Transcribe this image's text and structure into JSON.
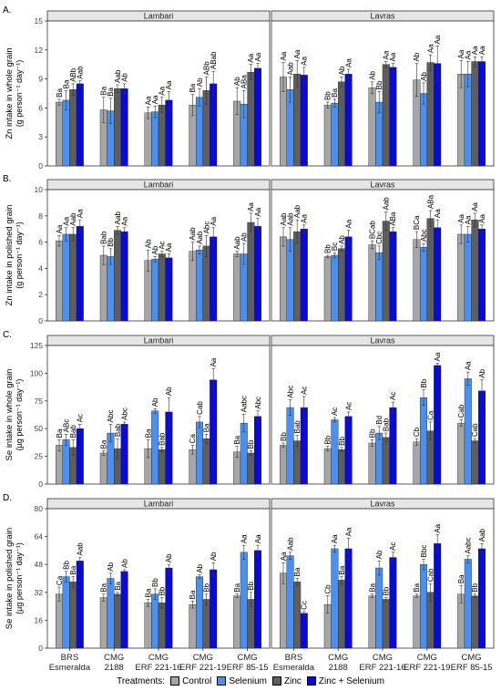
{
  "colors": {
    "Control": "#a6a6a6",
    "Selenium": "#4a90f0",
    "Zinc": "#5e5e5e",
    "Zinc + Selenium": "#0a0ad8"
  },
  "legend": {
    "title": "Treatments:",
    "entries": [
      "Control",
      "Selenium",
      "Zinc",
      "Zinc + Selenium"
    ]
  },
  "chart_data": [
    {
      "type": "bar",
      "panel_label": "A.",
      "ylabel": "Zn intake in whole grain",
      "yunit": "(g person⁻¹ day⁻¹)",
      "ylim": [
        0,
        15
      ],
      "yticks": [
        0,
        3,
        6,
        9,
        12,
        15
      ],
      "facets": [
        "Lambari",
        "Lavras"
      ],
      "categories": [
        "BRS Esmeralda",
        "CMG 2188",
        "CMG ERF 221-16",
        "CMG ERF 221-19",
        "CMG ERF 85-15"
      ],
      "series_names": [
        "Control",
        "Selenium",
        "Zinc",
        "Zinc + Selenium"
      ],
      "values": [
        [
          [
            6.6,
            6.8,
            7.9,
            8.5
          ],
          [
            5.8,
            5.7,
            8.0,
            8.0
          ],
          [
            5.5,
            5.6,
            6.3,
            6.8
          ],
          [
            6.3,
            7.1,
            7.8,
            8.5
          ],
          [
            6.7,
            6.4,
            9.7,
            10.1
          ]
        ],
        [
          [
            9.2,
            7.9,
            9.5,
            9.4
          ],
          [
            6.3,
            6.5,
            8.7,
            9.5
          ],
          [
            8.1,
            6.6,
            10.5,
            10.2
          ],
          [
            8.9,
            7.5,
            10.7,
            10.6
          ],
          [
            9.5,
            9.5,
            10.8,
            10.8
          ]
        ]
      ],
      "errors": [
        [
          [
            0.3,
            1.0,
            0.6,
            0.3
          ],
          [
            1.3,
            1.3,
            0.4,
            0.5
          ],
          [
            0.6,
            0.6,
            0.8,
            0.9
          ],
          [
            1.1,
            0.9,
            1.4,
            1.3
          ],
          [
            1.4,
            1.4,
            0.8,
            0.5
          ]
        ],
        [
          [
            1.5,
            1.3,
            1.4,
            0.8
          ],
          [
            0.3,
            0.4,
            0.5,
            0.5
          ],
          [
            0.6,
            1.1,
            0.3,
            0.4
          ],
          [
            1.7,
            1.1,
            0.8,
            1.8
          ],
          [
            1.4,
            1.3,
            0.5,
            0.5
          ]
        ]
      ],
      "letters": [
        [
          [
            "Ba",
            "Ba",
            "ABb",
            "Aab"
          ],
          [
            "Ba",
            "Ba",
            "Aab",
            "Ab"
          ],
          [
            "Aa",
            "Aa",
            "Aa",
            "Aa"
          ],
          [
            "Ba",
            "Ab",
            "ABb",
            "ABab"
          ],
          [
            "Ab",
            "ABa",
            "Aa",
            "Aa"
          ]
        ],
        [
          [
            "Aa",
            "Aab",
            "Aa",
            "Aa"
          ],
          [
            "Bb",
            "Ba",
            "Ab",
            "Aa"
          ],
          [
            "Ab",
            "Bb",
            "Aa",
            "Aa"
          ],
          [
            "Ab",
            "Ab",
            "Aa",
            "Aa"
          ],
          [
            "Aa",
            "Aa",
            "Aa",
            "Aa"
          ]
        ]
      ]
    },
    {
      "type": "bar",
      "panel_label": "B.",
      "ylabel": "Zn intake in polished grain",
      "yunit": "(g person⁻¹ day⁻¹)",
      "ylim": [
        0,
        10
      ],
      "yticks": [
        0,
        2,
        4,
        6,
        8,
        10
      ],
      "facets": [
        "Lambari",
        "Lavras"
      ],
      "categories": [
        "BRS Esmeralda",
        "CMG 2188",
        "CMG ERF 221-16",
        "CMG ERF 221-19",
        "CMG ERF 85-15"
      ],
      "series_names": [
        "Control",
        "Selenium",
        "Zinc",
        "Zinc + Selenium"
      ],
      "values": [
        [
          [
            6.1,
            6.6,
            6.6,
            7.2
          ],
          [
            5.0,
            4.9,
            6.9,
            6.8
          ],
          [
            4.6,
            4.7,
            5.1,
            4.8
          ],
          [
            5.3,
            5.4,
            5.7,
            6.4
          ],
          [
            5.1,
            5.1,
            7.5,
            7.2
          ]
        ],
        [
          [
            6.4,
            6.2,
            6.8,
            7.0
          ],
          [
            4.9,
            5.0,
            5.5,
            6.4
          ],
          [
            5.8,
            5.2,
            7.6,
            6.8
          ],
          [
            6.2,
            5.6,
            7.8,
            7.1
          ],
          [
            6.6,
            6.6,
            7.7,
            7.0
          ]
        ]
      ],
      "errors": [
        [
          [
            0.4,
            0.5,
            0.5,
            0.5
          ],
          [
            0.7,
            0.6,
            0.3,
            0.3
          ],
          [
            0.8,
            0.2,
            0.2,
            0.3
          ],
          [
            0.7,
            0.3,
            0.8,
            0.7
          ],
          [
            0.2,
            0.8,
            0.7,
            0.6
          ]
        ],
        [
          [
            0.7,
            0.9,
            0.9,
            0.3
          ],
          [
            0.1,
            0.2,
            0.2,
            0.5
          ],
          [
            0.3,
            0.5,
            0.7,
            0.3
          ],
          [
            0.6,
            0.3,
            0.6,
            0.6
          ],
          [
            0.7,
            0.6,
            0.5,
            0.3
          ]
        ]
      ],
      "letters": [
        [
          [
            "Aa",
            "Aa",
            "Aab",
            "Aa"
          ],
          [
            "Bab",
            "Bb",
            "Aab",
            "Aa"
          ],
          [
            "Ab",
            "Ab",
            "Ac",
            "Aa"
          ],
          [
            "Aab",
            "Aab",
            "Abc",
            "Aa"
          ],
          [
            "Aab",
            "Ab",
            "Aa",
            "Aa"
          ]
        ],
        [
          [
            "Aab",
            "Aab",
            "Aab",
            "Aa"
          ],
          [
            "Bb",
            "Bc",
            "Ab",
            "Aa"
          ],
          [
            "BCab",
            "Cbc",
            "Aab",
            "ABa"
          ],
          [
            "BCa",
            "Abc",
            "ABa",
            "Aa"
          ],
          [
            "Aa",
            "Aa",
            "Aa",
            "Aa"
          ]
        ]
      ]
    },
    {
      "type": "bar",
      "panel_label": "C.",
      "ylabel": "Se intake in whole grain",
      "yunit": "(µg person⁻¹ day⁻¹)",
      "ylim": [
        0,
        125
      ],
      "yticks": [
        0,
        25,
        50,
        75,
        100,
        125
      ],
      "facets": [
        "Lambari",
        "Lavras"
      ],
      "categories": [
        "BRS Esmeralda",
        "CMG 2188",
        "CMG ERF 221-16",
        "CMG ERF 221-19",
        "CMG ERF 85-15"
      ],
      "series_names": [
        "Control",
        "Selenium",
        "Zinc",
        "Zinc + Selenium"
      ],
      "values": [
        [
          [
            35,
            40,
            33,
            50
          ],
          [
            28,
            46,
            32,
            54
          ],
          [
            32,
            66,
            31,
            65
          ],
          [
            31,
            56,
            41,
            94
          ],
          [
            29,
            55,
            28,
            61
          ]
        ],
        [
          [
            35,
            69,
            39,
            69
          ],
          [
            32,
            58,
            31,
            61
          ],
          [
            37,
            46,
            42,
            69
          ],
          [
            38,
            78,
            48,
            107
          ],
          [
            55,
            95,
            39,
            84
          ]
        ]
      ],
      "errors": [
        [
          [
            5,
            5,
            7,
            4
          ],
          [
            2,
            8,
            9,
            2
          ],
          [
            8,
            2,
            2,
            13
          ],
          [
            4,
            5,
            4,
            10
          ],
          [
            5,
            8,
            2,
            5
          ]
        ],
        [
          [
            2,
            7,
            5,
            10
          ],
          [
            2,
            2,
            2,
            4
          ],
          [
            3,
            6,
            4,
            5
          ],
          [
            3,
            7,
            8,
            2
          ],
          [
            3,
            6,
            2,
            10
          ]
        ]
      ],
      "letters": [
        [
          [
            "Ba",
            "ABc",
            "Bab",
            "Ac"
          ],
          [
            "Ba",
            "Abc",
            "Bab",
            "Abc"
          ],
          [
            "Ba",
            "Ab",
            "Bab",
            "Ab"
          ],
          [
            "Ca",
            "Cab",
            "Ba",
            "Aa"
          ],
          [
            "Ba",
            "Aabc",
            "Bb",
            "Abc"
          ]
        ],
        [
          [
            "Bb",
            "Abc",
            "Bab",
            "Ac"
          ],
          [
            "Bb",
            "Ac",
            "Bb",
            "Ac"
          ],
          [
            "Bb",
            "Bd",
            "Bab",
            "Ac"
          ],
          [
            "Cb",
            "Bb",
            "Ca",
            "Aa"
          ],
          [
            "Cab",
            "Aa",
            "Cab",
            "Ab"
          ]
        ]
      ]
    },
    {
      "type": "bar",
      "panel_label": "D.",
      "ylabel": "Se intake in polished grain",
      "yunit": "(µg person⁻¹ day⁻¹)",
      "ylim": [
        0,
        80
      ],
      "yticks": [
        0,
        16,
        32,
        48,
        64,
        80
      ],
      "facets": [
        "Lambari",
        "Lavras"
      ],
      "categories": [
        "BRS Esmeralda",
        "CMG 2188",
        "CMG ERF 221-16",
        "CMG ERF 221-19",
        "CMG ERF 85-15"
      ],
      "series_names": [
        "Control",
        "Selenium",
        "Zinc",
        "Zinc + Selenium"
      ],
      "values": [
        [
          [
            31,
            41,
            38,
            50
          ],
          [
            29,
            40,
            31,
            44
          ],
          [
            26,
            31,
            26,
            46
          ],
          [
            25,
            41,
            28,
            45
          ],
          [
            30,
            55,
            28,
            56
          ]
        ],
        [
          [
            43,
            53,
            38,
            20
          ],
          [
            25,
            57,
            39,
            57
          ],
          [
            30,
            46,
            28,
            52
          ],
          [
            30,
            48,
            32,
            60
          ],
          [
            31,
            51,
            30,
            57
          ]
        ]
      ],
      "errors": [
        [
          [
            4,
            3,
            3,
            2
          ],
          [
            2,
            3,
            1,
            1
          ],
          [
            2,
            3,
            3,
            2
          ],
          [
            2,
            1,
            3,
            4
          ],
          [
            1,
            4,
            4,
            3
          ]
        ],
        [
          [
            6,
            2,
            2,
            1
          ],
          [
            5,
            2,
            2,
            6
          ],
          [
            1,
            4,
            1,
            3
          ],
          [
            1,
            3,
            5,
            5
          ],
          [
            5,
            2,
            1,
            3
          ]
        ]
      ],
      "letters": [
        [
          [
            "Ca",
            "Bb",
            "Ba",
            "Aab"
          ],
          [
            "Ba",
            "Ab",
            "Ba",
            "Ab"
          ],
          [
            "Ba",
            "Bb",
            "Bb",
            "Ab"
          ],
          [
            "Ba",
            "Ab",
            "Bb",
            "Ab"
          ],
          [
            "Ba",
            "Aa",
            "Bb",
            "Aa"
          ]
        ],
        [
          [
            "Aa",
            "Aab",
            "Ba",
            "Cc"
          ],
          [
            "Cb",
            "Aa",
            "Ba",
            "Aa"
          ],
          [
            "Ba",
            "Ab",
            "Bb",
            "Ac"
          ],
          [
            "Ba",
            "Bbc",
            "Cab",
            "Aa"
          ],
          [
            "Ba",
            "Aabc",
            "Bb",
            "Aab"
          ]
        ]
      ]
    }
  ]
}
